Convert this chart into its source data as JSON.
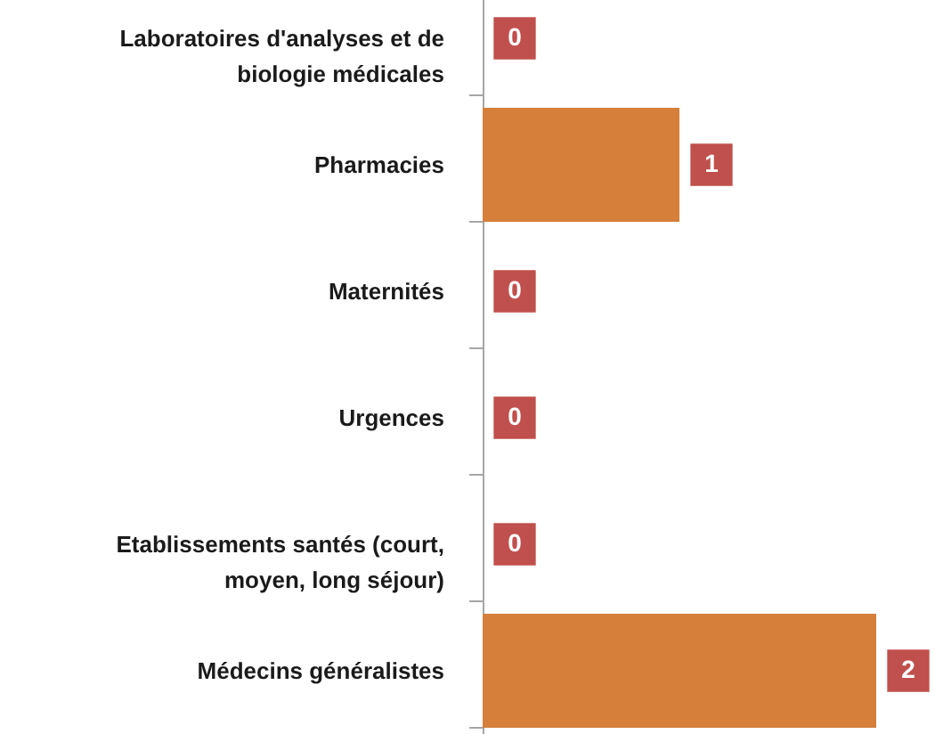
{
  "chart_data": {
    "type": "bar",
    "orientation": "horizontal",
    "categories": [
      "Laboratoires d'analyses et de biologie médicales",
      "Pharmacies",
      "Maternités",
      "Urgences",
      "Etablissements santés (court, moyen, long séjour)",
      "Médecins généralistes"
    ],
    "values": [
      0,
      1,
      0,
      0,
      0,
      2
    ],
    "color": "#d57f3b",
    "data_labels": true
  }
}
